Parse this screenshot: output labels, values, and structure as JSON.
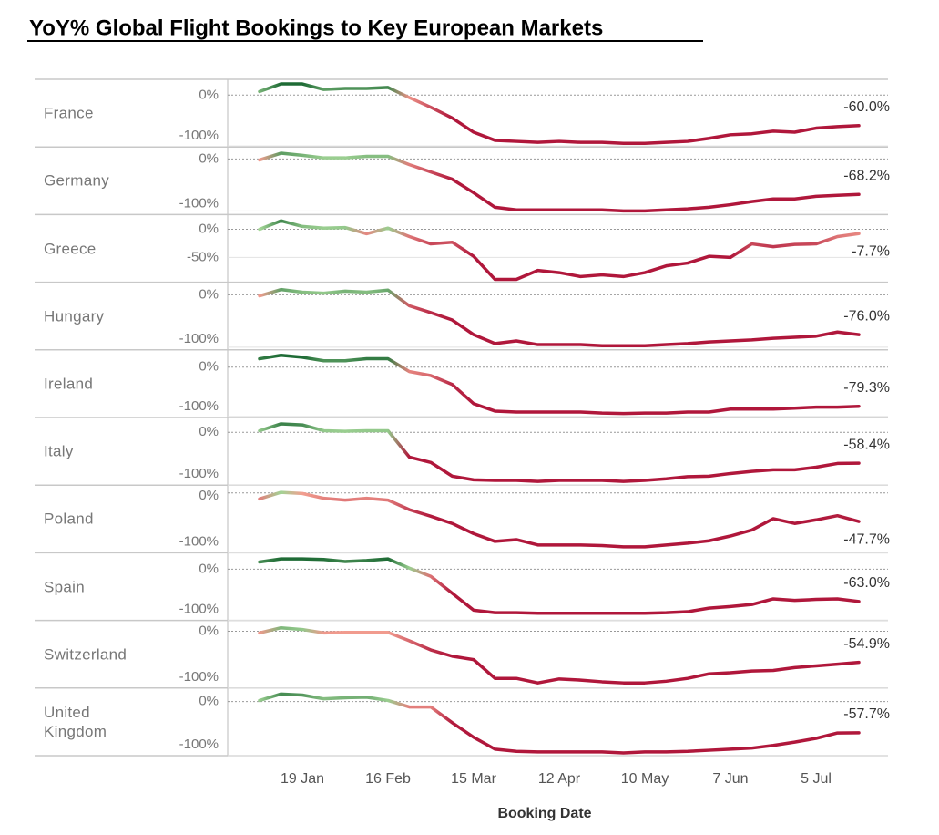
{
  "chart_data": {
    "type": "line",
    "title": "YoY% Global Flight Bookings to Key European Markets",
    "x_label": "Booking Date",
    "categories": [
      null,
      null,
      "19 Jan",
      null,
      null,
      null,
      "16 Feb",
      null,
      null,
      null,
      "15 Mar",
      null,
      null,
      null,
      "12 Apr",
      null,
      null,
      null,
      "10 May",
      null,
      null,
      null,
      "7 Jun",
      null,
      null,
      null,
      "5 Jul",
      null,
      null
    ],
    "colors": {
      "positive": "#1e6b35",
      "neutral_positive": "#a8d99a",
      "neutral_negative": "#f4a292",
      "negative": "#b0173b"
    },
    "panels": [
      {
        "name": "France",
        "ylim": [
          -102,
          31
        ],
        "yticks": [
          {
            "value": 0,
            "label": "0%"
          },
          {
            "value": -100,
            "label": "-100%"
          }
        ],
        "values": [
          7,
          22,
          22,
          11,
          13,
          13,
          15,
          -5,
          -24,
          -45,
          -73,
          -89,
          -91,
          -93,
          -91,
          -93,
          -93,
          -95,
          -95,
          -93,
          -91,
          -85,
          -78,
          -76,
          -71,
          -73,
          -65,
          -62,
          -60.0
        ],
        "value_labels": [
          null,
          null,
          null,
          null,
          null,
          null,
          null,
          null,
          null,
          null,
          null,
          null,
          null,
          null,
          null,
          null,
          null,
          null,
          null,
          null,
          null,
          null,
          null,
          null,
          null,
          null,
          null,
          null,
          "-60.0%"
        ]
      },
      {
        "name": "Germany",
        "ylim": [
          -107,
          23
        ],
        "yticks": [
          {
            "value": 0,
            "label": "0%"
          },
          {
            "value": -100,
            "label": "-100%"
          }
        ],
        "values": [
          -2,
          11,
          7,
          2,
          2,
          5,
          5,
          -11,
          -25,
          -39,
          -65,
          -93,
          -98,
          -98,
          -98,
          -98,
          -98,
          -100,
          -100,
          -98,
          -96,
          -93,
          -88,
          -82,
          -77,
          -77,
          -72,
          -70,
          -68.2
        ],
        "value_labels": [
          null,
          null,
          null,
          null,
          null,
          null,
          null,
          null,
          null,
          null,
          null,
          null,
          null,
          null,
          null,
          null,
          null,
          null,
          null,
          null,
          null,
          null,
          null,
          null,
          null,
          null,
          null,
          null,
          "-68.2%"
        ]
      },
      {
        "name": "Greece",
        "ylim": [
          -94,
          26
        ],
        "yticks": [
          {
            "value": 0,
            "label": "0%"
          },
          {
            "value": -50,
            "label": "-50%"
          }
        ],
        "values": [
          0,
          15,
          5,
          2,
          3,
          -8,
          2,
          -13,
          -26,
          -23,
          -48,
          -89,
          -89,
          -73,
          -77,
          -84,
          -81,
          -84,
          -77,
          -65,
          -60,
          -48,
          -50,
          -26,
          -31,
          -27,
          -26,
          -13,
          -7.7
        ],
        "value_labels": [
          null,
          null,
          null,
          null,
          null,
          null,
          null,
          null,
          null,
          null,
          null,
          null,
          null,
          null,
          null,
          null,
          null,
          null,
          null,
          null,
          null,
          null,
          null,
          null,
          null,
          null,
          null,
          null,
          "-7.7%"
        ]
      },
      {
        "name": "Hungary",
        "ylim": [
          -105,
          24
        ],
        "yticks": [
          {
            "value": 0,
            "label": "0%"
          },
          {
            "value": -100,
            "label": "-100%"
          }
        ],
        "values": [
          -2,
          10,
          5,
          3,
          7,
          5,
          9,
          -21,
          -34,
          -48,
          -76,
          -93,
          -88,
          -95,
          -95,
          -95,
          -97,
          -97,
          -97,
          -95,
          -93,
          -90,
          -88,
          -86,
          -83,
          -81,
          -79,
          -71,
          -76.0
        ],
        "value_labels": [
          null,
          null,
          null,
          null,
          null,
          null,
          null,
          null,
          null,
          null,
          null,
          null,
          null,
          null,
          null,
          null,
          null,
          null,
          null,
          null,
          null,
          null,
          null,
          null,
          null,
          null,
          null,
          null,
          "-76.0%"
        ]
      },
      {
        "name": "Ireland",
        "ylim": [
          -102,
          35
        ],
        "yticks": [
          {
            "value": 0,
            "label": "0%"
          },
          {
            "value": -100,
            "label": "-100%"
          }
        ],
        "values": [
          17,
          24,
          20,
          13,
          13,
          17,
          17,
          -9,
          -17,
          -35,
          -74,
          -89,
          -91,
          -91,
          -91,
          -91,
          -93,
          -94,
          -93,
          -93,
          -91,
          -91,
          -85,
          -85,
          -85,
          -83,
          -81,
          -81,
          -79.3
        ],
        "value_labels": [
          null,
          null,
          null,
          null,
          null,
          null,
          null,
          null,
          null,
          null,
          null,
          null,
          null,
          null,
          null,
          null,
          null,
          null,
          null,
          null,
          null,
          null,
          null,
          null,
          null,
          null,
          null,
          null,
          "-79.3%"
        ]
      },
      {
        "name": "Italy",
        "ylim": [
          -100,
          28
        ],
        "yticks": [
          {
            "value": 0,
            "label": "0%"
          },
          {
            "value": -100,
            "label": "-100%"
          }
        ],
        "values": [
          3,
          16,
          14,
          3,
          2,
          3,
          3,
          -47,
          -57,
          -83,
          -90,
          -91,
          -91,
          -93,
          -91,
          -91,
          -91,
          -93,
          -91,
          -88,
          -84,
          -83,
          -78,
          -74,
          -71,
          -71,
          -66,
          -59,
          -58.4
        ],
        "value_labels": [
          null,
          null,
          null,
          null,
          null,
          null,
          null,
          null,
          null,
          null,
          null,
          null,
          null,
          null,
          null,
          null,
          null,
          null,
          null,
          null,
          null,
          null,
          null,
          null,
          null,
          null,
          null,
          null,
          "-58.4%"
        ]
      },
      {
        "name": "Poland",
        "ylim": [
          -100,
          13
        ],
        "yticks": [
          {
            "value": 0,
            "label": "0%"
          },
          {
            "value": -100,
            "label": "-100%"
          }
        ],
        "values": [
          -10,
          1,
          -1,
          -9,
          -12,
          -9,
          -12,
          -28,
          -39,
          -51,
          -68,
          -81,
          -78,
          -87,
          -87,
          -87,
          -88,
          -90,
          -90,
          -87,
          -84,
          -80,
          -72,
          -62,
          -43,
          -51,
          -45,
          -38,
          -47.7
        ],
        "value_labels": [
          null,
          null,
          null,
          null,
          null,
          null,
          null,
          null,
          null,
          null,
          null,
          null,
          null,
          null,
          null,
          null,
          null,
          null,
          null,
          null,
          null,
          null,
          null,
          null,
          null,
          null,
          null,
          null,
          "-47.7%"
        ]
      },
      {
        "name": "Spain",
        "ylim": [
          -100,
          32
        ],
        "yticks": [
          {
            "value": 0,
            "label": "0%"
          },
          {
            "value": -100,
            "label": "-100%"
          }
        ],
        "values": [
          14,
          20,
          20,
          19,
          15,
          17,
          20,
          2,
          -14,
          -47,
          -80,
          -85,
          -85,
          -86,
          -86,
          -86,
          -86,
          -86,
          -86,
          -85,
          -83,
          -76,
          -73,
          -69,
          -58,
          -61,
          -59,
          -58,
          -63.0
        ],
        "value_labels": [
          null,
          null,
          null,
          null,
          null,
          null,
          null,
          null,
          null,
          null,
          null,
          null,
          null,
          null,
          null,
          null,
          null,
          null,
          null,
          null,
          null,
          null,
          null,
          null,
          null,
          null,
          null,
          null,
          "-63.0%"
        ]
      },
      {
        "name": "Switzerland",
        "ylim": [
          -100,
          19
        ],
        "yticks": [
          {
            "value": 0,
            "label": "0%"
          },
          {
            "value": -100,
            "label": "-100%"
          }
        ],
        "values": [
          -3,
          6,
          3,
          -3,
          -2,
          -2,
          -2,
          -17,
          -33,
          -44,
          -50,
          -83,
          -83,
          -91,
          -84,
          -86,
          -89,
          -91,
          -91,
          -88,
          -83,
          -75,
          -73,
          -70,
          -69,
          -64,
          -61,
          -58,
          -54.9
        ],
        "value_labels": [
          null,
          null,
          null,
          null,
          null,
          null,
          null,
          null,
          null,
          null,
          null,
          null,
          null,
          null,
          null,
          null,
          null,
          null,
          null,
          null,
          null,
          null,
          null,
          null,
          null,
          null,
          null,
          null,
          "-54.9%"
        ]
      },
      {
        "name": "United Kingdom",
        "ylim": [
          -100,
          25
        ],
        "yticks": [
          {
            "value": 0,
            "label": "0%"
          },
          {
            "value": -100,
            "label": "-100%"
          }
        ],
        "values": [
          2,
          14,
          12,
          5,
          7,
          8,
          2,
          -10,
          -10,
          -39,
          -66,
          -88,
          -92,
          -93,
          -93,
          -93,
          -93,
          -95,
          -93,
          -93,
          -92,
          -90,
          -88,
          -86,
          -81,
          -75,
          -68,
          -58,
          -57.7
        ],
        "value_labels": [
          null,
          null,
          null,
          null,
          null,
          null,
          null,
          null,
          null,
          null,
          null,
          null,
          null,
          null,
          null,
          null,
          null,
          null,
          null,
          null,
          null,
          null,
          null,
          null,
          null,
          null,
          null,
          null,
          "-57.7%"
        ]
      }
    ]
  }
}
